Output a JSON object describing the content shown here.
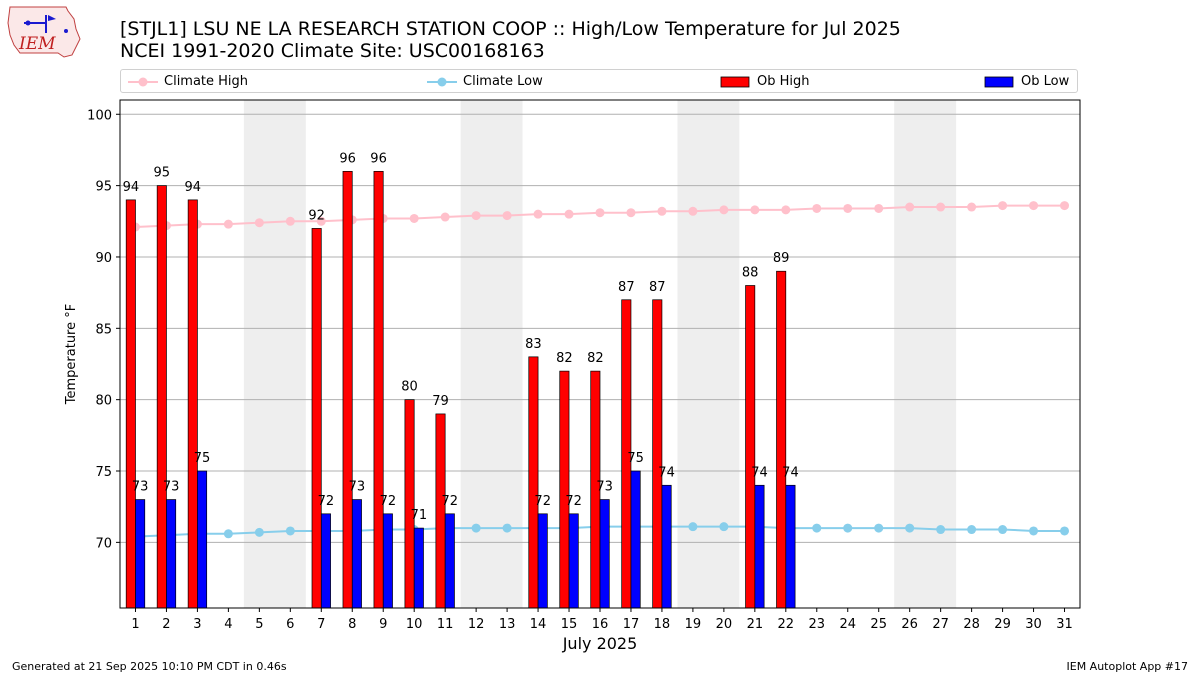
{
  "header": {
    "title_line1": "[STJL1] LSU NE LA RESEARCH STATION COOP :: High/Low Temperature for Jul 2025",
    "title_line2": "NCEI 1991-2020 Climate Site: USC00168163",
    "logo_text": "IEM"
  },
  "legend": {
    "climate_high": "Climate High",
    "climate_low": "Climate Low",
    "ob_high": "Ob High",
    "ob_low": "Ob Low"
  },
  "colors": {
    "ob_high": "#ff0000",
    "ob_low": "#0000ff",
    "climate_high": "#ffc0cb",
    "climate_low": "#87ceeb",
    "weekend_shade": "#eeeeee"
  },
  "chart_data": {
    "type": "bar",
    "xlabel": "July 2025",
    "ylabel": "Temperature °F",
    "ylim": [
      65.4,
      101
    ],
    "yticks": [
      70,
      75,
      80,
      85,
      90,
      95,
      100
    ],
    "grid": true,
    "legend_position": "top",
    "categories": [
      1,
      2,
      3,
      4,
      5,
      6,
      7,
      8,
      9,
      10,
      11,
      12,
      13,
      14,
      15,
      16,
      17,
      18,
      19,
      20,
      21,
      22,
      23,
      24,
      25,
      26,
      27,
      28,
      29,
      30,
      31
    ],
    "shaded_days": [
      [
        5,
        6
      ],
      [
        12,
        13
      ],
      [
        19,
        20
      ],
      [
        26,
        27
      ]
    ],
    "series": [
      {
        "name": "Ob High",
        "kind": "bar",
        "values": [
          94,
          95,
          94,
          null,
          null,
          null,
          92,
          96,
          96,
          80,
          79,
          null,
          null,
          83,
          82,
          82,
          87,
          87,
          null,
          null,
          88,
          89,
          null,
          null,
          null,
          null,
          null,
          null,
          null,
          null,
          null
        ]
      },
      {
        "name": "Ob Low",
        "kind": "bar",
        "values": [
          73,
          73,
          75,
          null,
          null,
          null,
          72,
          73,
          72,
          71,
          72,
          null,
          null,
          72,
          72,
          73,
          75,
          74,
          null,
          null,
          74,
          74,
          null,
          null,
          null,
          null,
          null,
          null,
          null,
          null,
          null
        ]
      },
      {
        "name": "Climate High",
        "kind": "line",
        "values": [
          92.1,
          92.2,
          92.3,
          92.3,
          92.4,
          92.5,
          92.5,
          92.6,
          92.7,
          92.7,
          92.8,
          92.9,
          92.9,
          93.0,
          93.0,
          93.1,
          93.1,
          93.2,
          93.2,
          93.3,
          93.3,
          93.3,
          93.4,
          93.4,
          93.4,
          93.5,
          93.5,
          93.5,
          93.6,
          93.6,
          93.6
        ]
      },
      {
        "name": "Climate Low",
        "kind": "line",
        "values": [
          70.4,
          70.5,
          70.6,
          70.6,
          70.7,
          70.8,
          70.8,
          70.8,
          70.9,
          70.9,
          71.0,
          71.0,
          71.0,
          71.0,
          71.0,
          71.1,
          71.1,
          71.1,
          71.1,
          71.1,
          71.1,
          71.0,
          71.0,
          71.0,
          71.0,
          71.0,
          70.9,
          70.9,
          70.9,
          70.8,
          70.8
        ]
      }
    ]
  },
  "footer": {
    "generated": "Generated at 21 Sep 2025 10:10 PM CDT in 0.46s",
    "app": "IEM Autoplot App #17"
  }
}
